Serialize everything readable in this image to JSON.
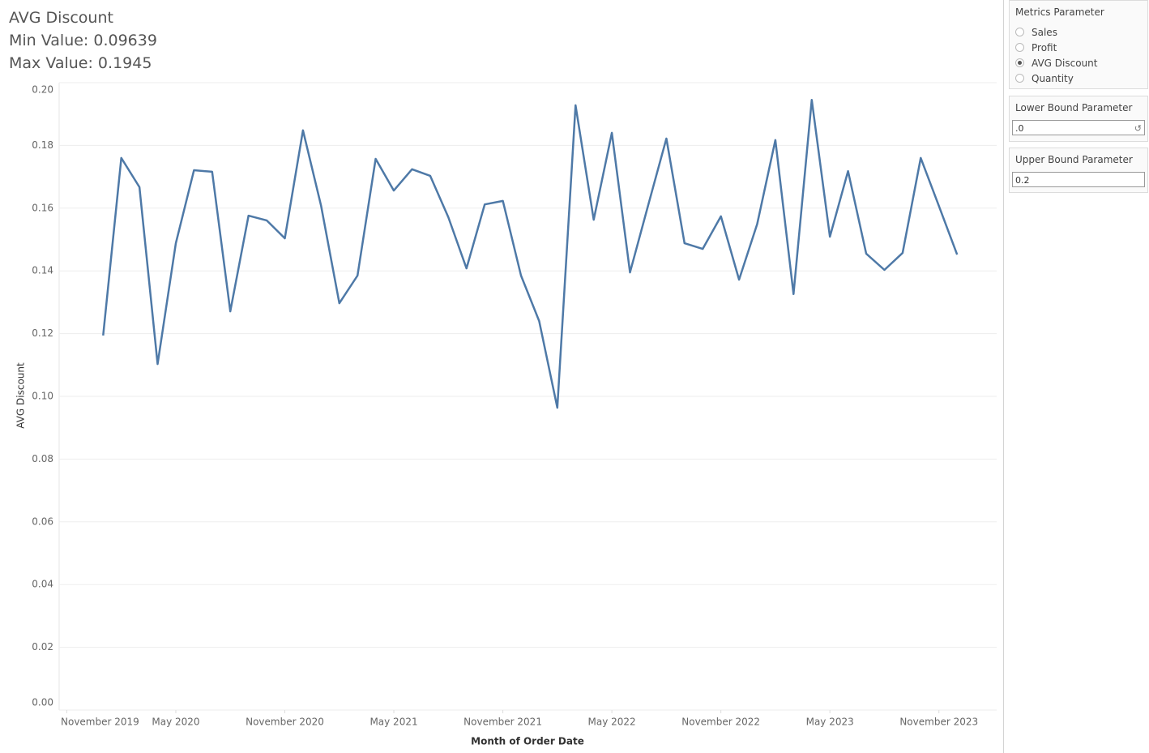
{
  "header": {
    "title": "AVG Discount",
    "min_line": "Min Value: 0.09639",
    "max_line": "Max Value: 0.1945"
  },
  "chart_data": {
    "type": "line",
    "x_label": "Month of Order Date",
    "y_label": "AVG Discount",
    "x": [
      "2020-01",
      "2020-02",
      "2020-03",
      "2020-04",
      "2020-05",
      "2020-06",
      "2020-07",
      "2020-08",
      "2020-09",
      "2020-10",
      "2020-11",
      "2020-12",
      "2021-01",
      "2021-02",
      "2021-03",
      "2021-04",
      "2021-05",
      "2021-06",
      "2021-07",
      "2021-08",
      "2021-09",
      "2021-10",
      "2021-11",
      "2021-12",
      "2022-01",
      "2022-02",
      "2022-03",
      "2022-04",
      "2022-05",
      "2022-06",
      "2022-07",
      "2022-08",
      "2022-09",
      "2022-10",
      "2022-11",
      "2022-12",
      "2023-01",
      "2023-02",
      "2023-03",
      "2023-04",
      "2023-05",
      "2023-06",
      "2023-07",
      "2023-08",
      "2023-09",
      "2023-10",
      "2023-11",
      "2023-12"
    ],
    "values": [
      0.1194,
      0.176,
      0.1667,
      0.1103,
      0.1488,
      0.1721,
      0.1716,
      0.1271,
      0.1576,
      0.1561,
      0.1504,
      0.1848,
      0.1607,
      0.1297,
      0.1385,
      0.1757,
      0.1656,
      0.1724,
      0.1703,
      0.1571,
      0.1408,
      0.1612,
      0.1623,
      0.1385,
      0.124,
      0.09639,
      0.1928,
      0.1563,
      0.184,
      0.1395,
      0.161,
      0.1822,
      0.1488,
      0.147,
      0.1574,
      0.1372,
      0.155,
      0.1817,
      0.1326,
      0.1945,
      0.1509,
      0.1718,
      0.1455,
      0.1403,
      0.1457,
      0.176,
      0.1607,
      0.1452
    ],
    "color": "#4e79a7",
    "xlim": [
      "2019-10",
      "2024-02"
    ],
    "xticks": [
      {
        "value": "2019-11",
        "label": "November 2019"
      },
      {
        "value": "2020-05",
        "label": "May 2020"
      },
      {
        "value": "2020-11",
        "label": "November 2020"
      },
      {
        "value": "2021-05",
        "label": "May 2021"
      },
      {
        "value": "2021-11",
        "label": "November 2021"
      },
      {
        "value": "2022-05",
        "label": "May 2022"
      },
      {
        "value": "2022-11",
        "label": "November 2022"
      },
      {
        "value": "2023-05",
        "label": "May 2023"
      },
      {
        "value": "2023-11",
        "label": "November 2023"
      }
    ],
    "ylim": [
      0,
      0.2
    ],
    "yticks": [
      {
        "value": 0,
        "label": "0.00"
      },
      0.02,
      0.04,
      0.06,
      0.08,
      {
        "value": 0.1,
        "label": "0.10"
      },
      0.12,
      0.14,
      0.16,
      0.18,
      {
        "value": 0.2,
        "label": "0.20"
      }
    ],
    "grid": true
  },
  "panel": {
    "metrics": {
      "title": "Metrics Parameter",
      "options": [
        "Sales",
        "Profit",
        "AVG Discount",
        "Quantity"
      ],
      "selected": 2
    },
    "lower": {
      "title": "Lower Bound Parameter",
      "value": ".0"
    },
    "upper": {
      "title": "Upper Bound Parameter",
      "value": "0.2"
    }
  }
}
